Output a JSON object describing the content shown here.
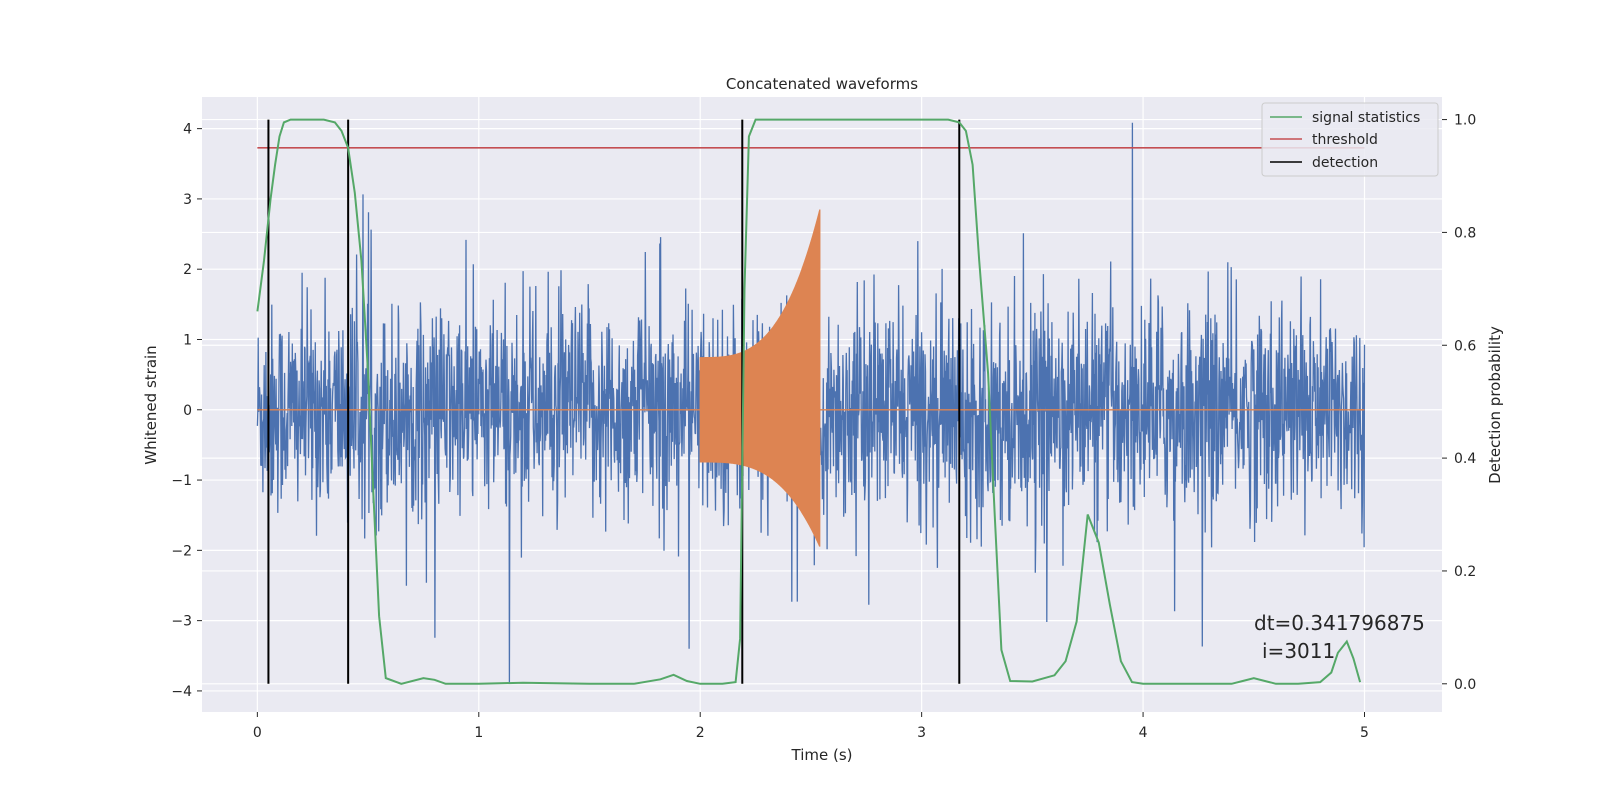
{
  "chart_data": {
    "type": "line",
    "title": "Concatenated waveforms",
    "xlabel": "Time (s)",
    "ylabel": "Whitened strain",
    "ylabel_right": "Detection probability",
    "xlim": [
      -0.25,
      5.35
    ],
    "ylim": [
      -4.3,
      4.45
    ],
    "ylim_right": [
      -0.05,
      1.04
    ],
    "xticks": [
      0,
      1,
      2,
      3,
      4,
      5
    ],
    "yticks": [
      -4,
      -3,
      -2,
      -1,
      0,
      1,
      2,
      3,
      4
    ],
    "yticks_right": [
      0.0,
      0.2,
      0.4,
      0.6,
      0.8,
      1.0
    ],
    "grid": true,
    "legend_position": "top-right",
    "series": [
      {
        "name": "signal statistics",
        "axis": "right",
        "color": "#55a868",
        "x": [
          0.0,
          0.03,
          0.06,
          0.08,
          0.1,
          0.12,
          0.15,
          0.2,
          0.3,
          0.35,
          0.38,
          0.41,
          0.44,
          0.47,
          0.5,
          0.52,
          0.55,
          0.58,
          0.65,
          0.75,
          0.8,
          0.85,
          0.9,
          1.0,
          1.2,
          1.5,
          1.7,
          1.82,
          1.88,
          1.94,
          2.0,
          2.1,
          2.16,
          2.18,
          2.2,
          2.22,
          2.25,
          2.3,
          2.5,
          3.0,
          3.12,
          3.17,
          3.2,
          3.23,
          3.26,
          3.3,
          3.33,
          3.36,
          3.4,
          3.5,
          3.6,
          3.65,
          3.7,
          3.75,
          3.8,
          3.85,
          3.9,
          3.95,
          4.0,
          4.2,
          4.4,
          4.45,
          4.5,
          4.6,
          4.7,
          4.8,
          4.85,
          4.88,
          4.92,
          4.95,
          4.98
        ],
        "y": [
          0.66,
          0.75,
          0.86,
          0.92,
          0.97,
          0.995,
          1.0,
          1.0,
          1.0,
          0.995,
          0.98,
          0.95,
          0.87,
          0.75,
          0.55,
          0.37,
          0.12,
          0.01,
          0.0,
          0.01,
          0.007,
          0.0,
          0.0,
          0.0,
          0.002,
          0.0,
          0.0,
          0.008,
          0.016,
          0.005,
          0.0,
          0.0,
          0.003,
          0.08,
          0.7,
          0.97,
          1.0,
          1.0,
          1.0,
          1.0,
          1.0,
          0.995,
          0.98,
          0.92,
          0.75,
          0.55,
          0.3,
          0.06,
          0.005,
          0.004,
          0.015,
          0.04,
          0.11,
          0.3,
          0.25,
          0.14,
          0.04,
          0.003,
          0.0,
          0.0,
          0.0,
          0.005,
          0.01,
          0.0,
          0.0,
          0.003,
          0.02,
          0.055,
          0.075,
          0.045,
          0.003
        ]
      },
      {
        "name": "threshold",
        "axis": "right",
        "color": "#c44e52",
        "x": [
          0.0,
          5.0
        ],
        "y": [
          0.95,
          0.95
        ]
      },
      {
        "name": "detection",
        "axis": "right",
        "color": "#000000",
        "x_positions": [
          0.05,
          0.41,
          2.19,
          3.17
        ],
        "y_range": [
          0.0,
          1.0
        ]
      },
      {
        "name": "",
        "axis": "left",
        "color": "#4c72b0",
        "x_range": [
          0.0,
          5.0
        ],
        "y_amplitude_typical": 0.9,
        "y_min": -3.9,
        "y_max": 4.1
      },
      {
        "name": "",
        "axis": "left",
        "color": "#dd8452",
        "chirp_start": 2.0,
        "chirp_end": 2.54,
        "start_amplitude": 0.75,
        "peak_amplitude_top": 2.85,
        "peak_amplitude_bottom": -1.95,
        "baseline": 0.0
      }
    ],
    "annotations": [
      {
        "text": "dt=0.341796875",
        "x": 5.4,
        "y": -3.0
      },
      {
        "text": "i=3011",
        "x": 5.4,
        "y": -3.4
      }
    ]
  }
}
